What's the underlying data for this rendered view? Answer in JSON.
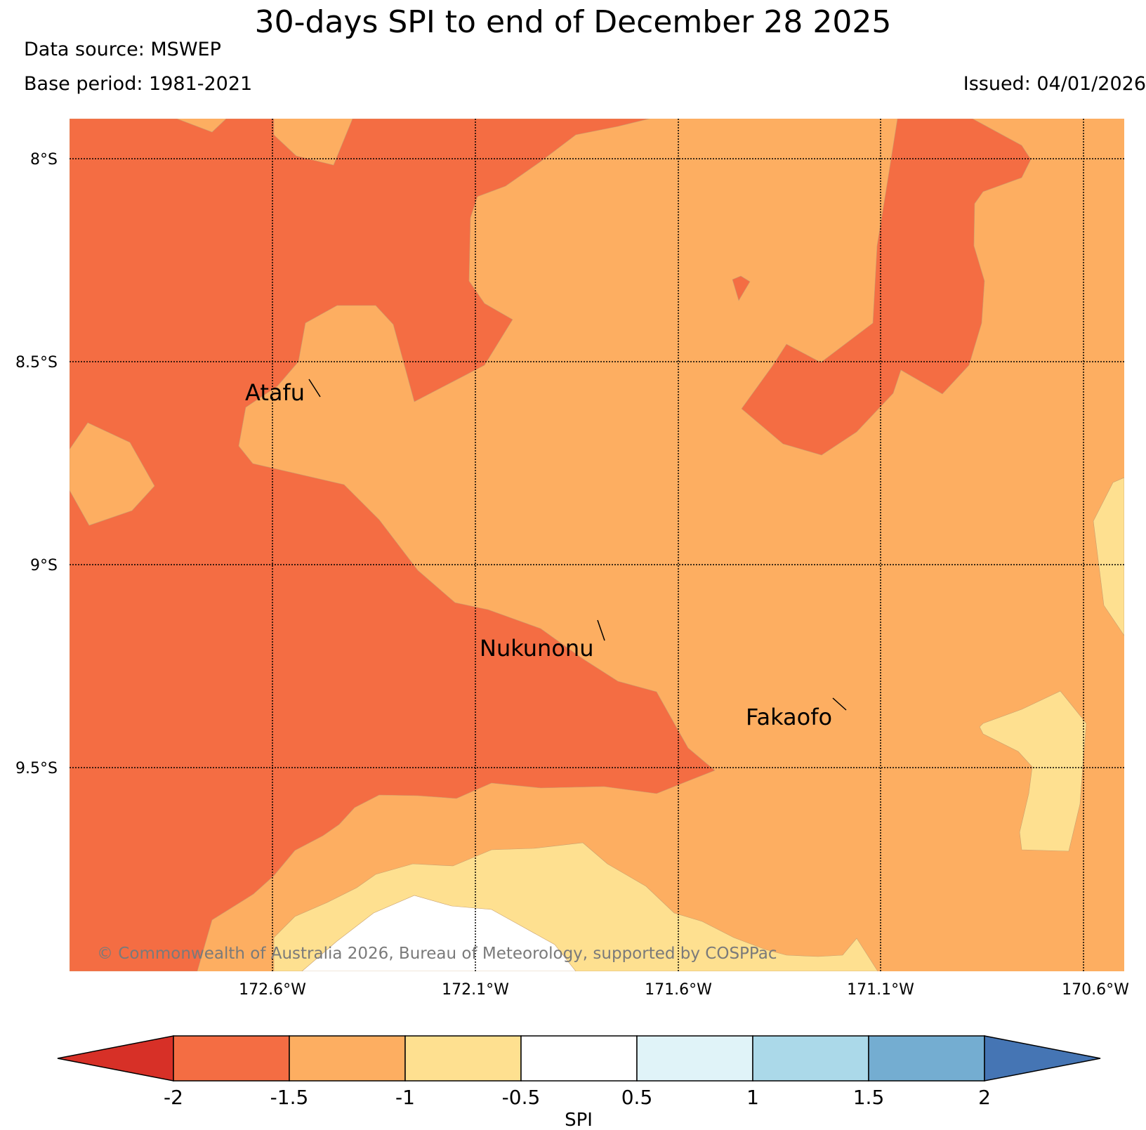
{
  "header": {
    "title": "30-days SPI to end of December 28 2025",
    "data_source": "Data source: MSWEP",
    "base_period": "Base period: 1981-2021",
    "issued": "Issued: 04/01/2026"
  },
  "map": {
    "lat_labels": [
      "8°S",
      "8.5°S",
      "9°S",
      "9.5°S"
    ],
    "lon_labels": [
      "172.6°W",
      "172.1°W",
      "171.6°W",
      "171.1°W",
      "170.6°W"
    ],
    "places": [
      {
        "name": "Atafu"
      },
      {
        "name": "Nukunonu"
      },
      {
        "name": "Fakaofo"
      }
    ],
    "copyright": "© Commonwealth of Australia 2026, Bureau of Meteorology, supported by COSPPac"
  },
  "colorbar": {
    "label": "SPI",
    "ticks": [
      "-2",
      "-1.5",
      "-1",
      "-0.5",
      "0.5",
      "1",
      "1.5",
      "2"
    ],
    "colors": {
      "lt_m2": "#d73027",
      "m2_m15": "#f46d43",
      "m15_m1": "#fdae61",
      "m1_m05": "#fee090",
      "m05_05": "#ffffff",
      "p05_1": "#e0f3f8",
      "p1_15": "#abd9e9",
      "p15_2": "#74add1",
      "gt_2": "#4575b4"
    }
  }
}
